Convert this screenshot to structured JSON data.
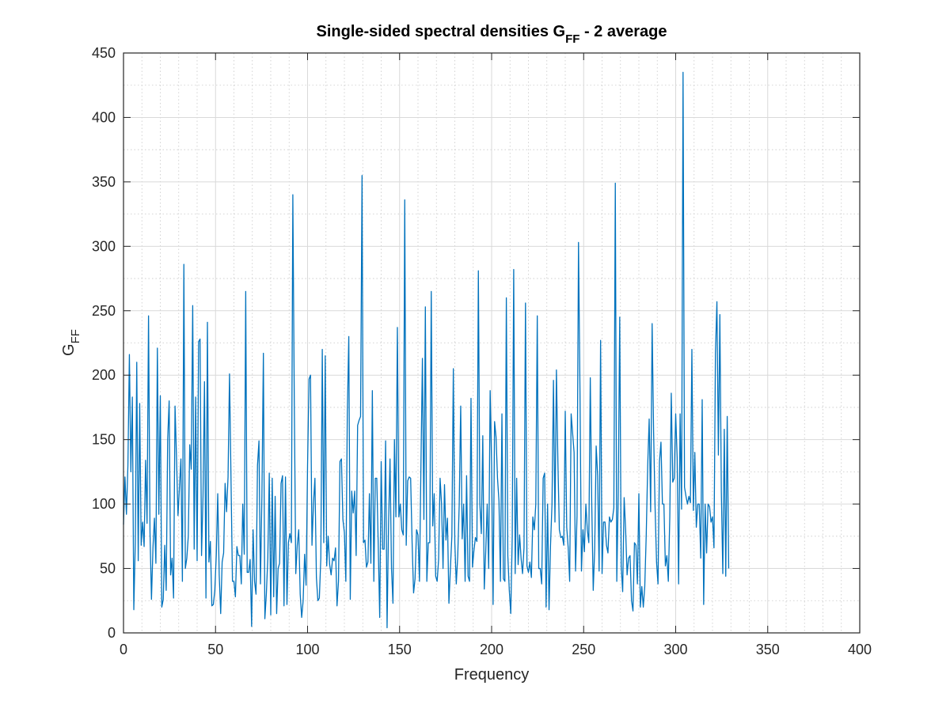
{
  "chart_data": {
    "type": "line",
    "title": {
      "main": "Single-sided spectral densities G",
      "sub": "FF",
      "suffix": " - 2 average"
    },
    "xlabel": "Frequency",
    "ylabel": {
      "main": "G",
      "sub": "FF"
    },
    "xlim": [
      0,
      400
    ],
    "ylim": [
      0,
      450
    ],
    "xticks": [
      0,
      50,
      100,
      150,
      200,
      250,
      300,
      350,
      400
    ],
    "yticks": [
      0,
      50,
      100,
      150,
      200,
      250,
      300,
      350,
      400,
      450
    ],
    "xtick_labels": [
      "0",
      "50",
      "100",
      "150",
      "200",
      "250",
      "300",
      "350",
      "400"
    ],
    "ytick_labels": [
      "0",
      "50",
      "100",
      "150",
      "200",
      "250",
      "300",
      "350",
      "400",
      "450"
    ],
    "grid": {
      "major": true,
      "minor": true
    },
    "box": true,
    "line_color": "#0072BD",
    "grid_color": "#d9d9d9",
    "axis_color": "#262626",
    "x_step": 0.8,
    "series": [
      {
        "values": [
          84,
          121,
          92,
          130,
          216,
          125,
          183,
          18,
          70,
          210,
          56,
          178,
          68,
          86,
          67,
          134,
          85,
          246,
          78,
          26,
          66,
          89,
          54,
          221,
          92,
          184,
          20,
          26,
          68,
          33,
          150,
          180,
          45,
          58,
          27,
          176,
          136,
          91,
          113,
          135,
          40,
          286,
          50,
          58,
          75,
          146,
          127,
          254,
          65,
          183,
          56,
          226,
          228,
          60,
          106,
          195,
          27,
          241,
          55,
          71,
          21,
          22,
          33,
          60,
          108,
          45,
          15,
          55,
          62,
          116,
          94,
          121,
          201,
          120,
          40,
          40,
          28,
          67,
          60,
          60,
          38,
          100,
          61,
          265,
          47,
          47,
          57,
          5,
          80,
          40,
          30,
          130,
          149,
          38,
          106,
          217,
          11,
          30,
          58,
          124,
          14,
          120,
          28,
          106,
          15,
          50,
          54,
          116,
          122,
          21,
          121,
          22,
          70,
          77,
          70,
          340,
          178,
          46,
          68,
          80,
          30,
          12,
          25,
          61,
          37,
          130,
          197,
          200,
          68,
          100,
          120,
          43,
          25,
          27,
          58,
          220,
          70,
          215,
          52,
          75,
          53,
          45,
          58,
          56,
          66,
          21,
          40,
          133,
          135,
          88,
          78,
          40,
          170,
          230,
          26,
          110,
          93,
          110,
          60,
          161,
          165,
          168,
          355,
          70,
          72,
          51,
          55,
          108,
          54,
          188,
          40,
          120,
          120,
          68,
          12,
          133,
          65,
          65,
          149,
          4,
          84,
          135,
          50,
          23,
          150,
          90,
          237,
          90,
          100,
          80,
          76,
          336,
          68,
          118,
          121,
          120,
          70,
          31,
          42,
          80,
          76,
          40,
          130,
          213,
          88,
          253,
          40,
          70,
          70,
          265,
          83,
          108,
          44,
          40,
          57,
          120,
          100,
          50,
          115,
          72,
          89,
          23,
          50,
          75,
          205,
          70,
          38,
          60,
          100,
          176,
          73,
          100,
          40,
          122,
          44,
          40,
          182,
          51,
          64,
          74,
          71,
          281,
          100,
          77,
          153,
          34,
          63,
          100,
          50,
          188,
          130,
          22,
          164,
          152,
          120,
          102,
          40,
          170,
          42,
          40,
          260,
          60,
          33,
          15,
          75,
          282,
          46,
          120,
          53,
          76,
          58,
          46,
          66,
          256,
          52,
          47,
          55,
          43,
          90,
          80,
          100,
          246,
          50,
          50,
          38,
          120,
          124,
          20,
          100,
          18,
          68,
          100,
          196,
          86,
          204,
          133,
          80,
          74,
          75,
          68,
          172,
          82,
          66,
          40,
          170,
          155,
          140,
          48,
          91,
          303,
          188,
          48,
          80,
          63,
          100,
          80,
          70,
          198,
          100,
          33,
          65,
          145,
          122,
          48,
          227,
          46,
          86,
          86,
          68,
          62,
          90,
          86,
          88,
          97,
          349,
          40,
          108,
          245,
          52,
          32,
          105,
          80,
          45,
          58,
          60,
          25,
          17,
          70,
          68,
          38,
          108,
          20,
          36,
          20,
          36,
          76,
          130,
          166,
          94,
          240,
          156,
          98,
          55,
          38,
          133,
          148,
          100,
          100,
          52,
          60,
          40,
          90,
          186,
          117,
          120,
          170,
          136,
          38,
          170,
          96,
          435,
          113,
          106,
          100,
          106,
          101,
          220,
          95,
          140,
          82,
          100,
          100,
          58,
          181,
          22,
          100,
          62,
          100,
          98,
          86,
          90,
          66,
          217,
          257,
          138,
          247,
          110,
          46,
          158,
          44,
          168,
          50
        ]
      }
    ]
  }
}
